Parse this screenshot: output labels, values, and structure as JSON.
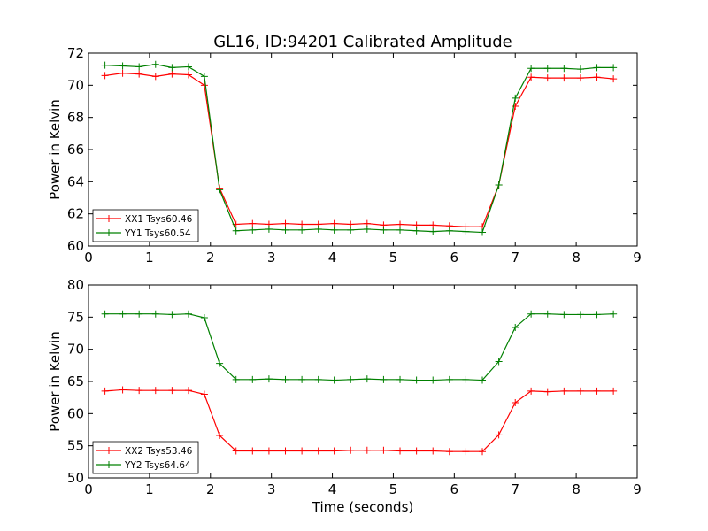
{
  "title": "GL16, ID:94201 Calibrated Amplitude",
  "chart_data": [
    {
      "type": "line",
      "ylabel": "Power in Kelvin",
      "xlabel": "",
      "xlim": [
        0,
        9
      ],
      "ylim": [
        60,
        72
      ],
      "xticks": [
        0,
        1,
        2,
        3,
        4,
        5,
        6,
        7,
        8,
        9
      ],
      "yticks": [
        60,
        62,
        64,
        66,
        68,
        70,
        72
      ],
      "grid": false,
      "legend_position": "lower-left",
      "x": [
        0.27,
        0.56,
        0.83,
        1.1,
        1.37,
        1.64,
        1.9,
        2.15,
        2.42,
        2.69,
        2.96,
        3.23,
        3.5,
        3.77,
        4.03,
        4.3,
        4.57,
        4.84,
        5.11,
        5.38,
        5.65,
        5.92,
        6.19,
        6.46,
        6.73,
        7.0,
        7.26,
        7.53,
        7.8,
        8.07,
        8.34,
        8.61
      ],
      "series": [
        {
          "name": "XX1 Tsys60.46",
          "color": "#ff0000",
          "values": [
            70.6,
            70.75,
            70.7,
            70.55,
            70.7,
            70.65,
            70.0,
            63.6,
            61.35,
            61.4,
            61.35,
            61.4,
            61.35,
            61.35,
            61.4,
            61.35,
            61.4,
            61.3,
            61.35,
            61.3,
            61.3,
            61.25,
            61.2,
            61.2,
            63.8,
            68.7,
            70.5,
            70.45,
            70.45,
            70.45,
            70.5,
            70.4
          ]
        },
        {
          "name": "YY1 Tsys60.54",
          "color": "#008000",
          "values": [
            71.25,
            71.2,
            71.15,
            71.3,
            71.1,
            71.15,
            70.55,
            63.5,
            60.95,
            61.0,
            61.05,
            61.0,
            61.0,
            61.05,
            61.0,
            61.0,
            61.05,
            61.0,
            61.0,
            60.95,
            60.9,
            60.95,
            60.9,
            60.85,
            63.8,
            69.2,
            71.05,
            71.05,
            71.05,
            71.0,
            71.1,
            71.1
          ]
        }
      ]
    },
    {
      "type": "line",
      "ylabel": "Power in Kelvin",
      "xlabel": "Time (seconds)",
      "xlim": [
        0,
        9
      ],
      "ylim": [
        50,
        80
      ],
      "xticks": [
        0,
        1,
        2,
        3,
        4,
        5,
        6,
        7,
        8,
        9
      ],
      "yticks": [
        50,
        55,
        60,
        65,
        70,
        75,
        80
      ],
      "grid": false,
      "legend_position": "lower-left",
      "x": [
        0.27,
        0.56,
        0.83,
        1.1,
        1.37,
        1.64,
        1.9,
        2.15,
        2.42,
        2.69,
        2.96,
        3.23,
        3.5,
        3.77,
        4.03,
        4.3,
        4.57,
        4.84,
        5.11,
        5.38,
        5.65,
        5.92,
        6.19,
        6.46,
        6.73,
        7.0,
        7.26,
        7.53,
        7.8,
        8.07,
        8.34,
        8.61
      ],
      "series": [
        {
          "name": "XX2 Tsys53.46",
          "color": "#ff0000",
          "values": [
            63.5,
            63.7,
            63.6,
            63.6,
            63.6,
            63.6,
            63.0,
            56.6,
            54.2,
            54.2,
            54.2,
            54.2,
            54.2,
            54.2,
            54.2,
            54.3,
            54.3,
            54.3,
            54.2,
            54.2,
            54.2,
            54.1,
            54.1,
            54.1,
            56.7,
            61.7,
            63.5,
            63.4,
            63.5,
            63.5,
            63.5,
            63.5
          ]
        },
        {
          "name": "YY2 Tsys64.64",
          "color": "#008000",
          "values": [
            75.5,
            75.5,
            75.5,
            75.5,
            75.4,
            75.5,
            74.9,
            67.8,
            65.3,
            65.3,
            65.4,
            65.3,
            65.3,
            65.3,
            65.2,
            65.3,
            65.4,
            65.3,
            65.3,
            65.2,
            65.2,
            65.3,
            65.3,
            65.2,
            68.1,
            73.4,
            75.5,
            75.5,
            75.4,
            75.4,
            75.4,
            75.5
          ]
        }
      ]
    }
  ]
}
